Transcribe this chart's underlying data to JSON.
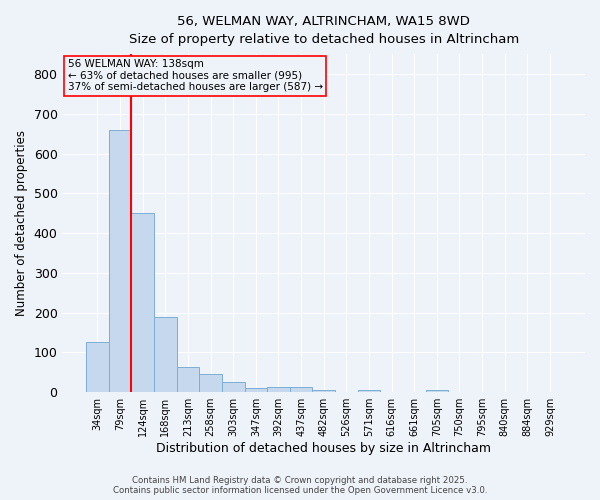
{
  "title_line1": "56, WELMAN WAY, ALTRINCHAM, WA15 8WD",
  "title_line2": "Size of property relative to detached houses in Altrincham",
  "xlabel": "Distribution of detached houses by size in Altrincham",
  "ylabel": "Number of detached properties",
  "bar_labels": [
    "34sqm",
    "79sqm",
    "124sqm",
    "168sqm",
    "213sqm",
    "258sqm",
    "303sqm",
    "347sqm",
    "392sqm",
    "437sqm",
    "482sqm",
    "526sqm",
    "571sqm",
    "616sqm",
    "661sqm",
    "705sqm",
    "750sqm",
    "795sqm",
    "840sqm",
    "884sqm",
    "929sqm"
  ],
  "bar_values": [
    127,
    660,
    450,
    190,
    63,
    46,
    25,
    10,
    12,
    13,
    5,
    0,
    5,
    0,
    0,
    5,
    0,
    0,
    0,
    0,
    0
  ],
  "bar_color": "#c5d8ee",
  "bar_edgecolor": "#7bafd4",
  "redline_x": 1.5,
  "annotation_text": "56 WELMAN WAY: 138sqm\n← 63% of detached houses are smaller (995)\n37% of semi-detached houses are larger (587) →",
  "ylim": [
    0,
    850
  ],
  "yticks": [
    0,
    100,
    200,
    300,
    400,
    500,
    600,
    700,
    800
  ],
  "background_color": "#eef2f9",
  "grid_color": "#ffffff",
  "footer_line1": "Contains HM Land Registry data © Crown copyright and database right 2025.",
  "footer_line2": "Contains public sector information licensed under the Open Government Licence v3.0."
}
